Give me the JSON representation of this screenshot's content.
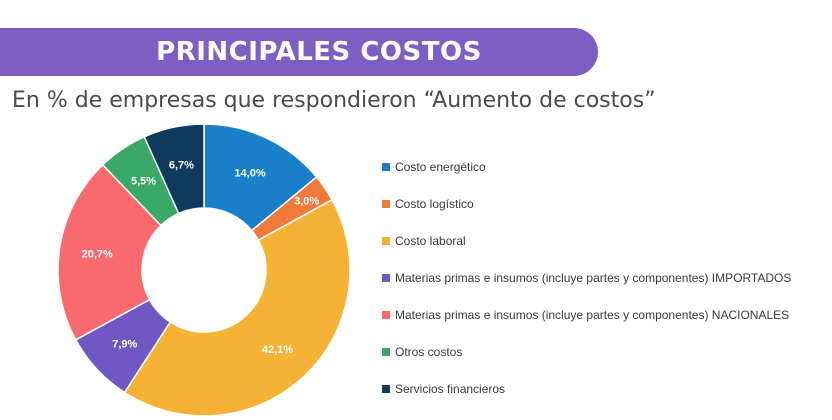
{
  "header": {
    "title": "PRINCIPALES COSTOS"
  },
  "subtitle": "En % de empresas que respondieron “Aumento de costos”",
  "chart_data": {
    "type": "pie",
    "title": "PRINCIPALES COSTOS",
    "subtitle": "En % de empresas que respondieron “Aumento de costos”",
    "legend_position": "right",
    "categories": [
      "Costo energético",
      "Costo logístico",
      "Costo laboral",
      "Materias primas e insumos (incluye partes y componentes) IMPORTADOS",
      "Materias primas e insumos (incluye partes y componentes) NACIONALES",
      "Otros costos",
      "Servicios financieros"
    ],
    "values": [
      14.0,
      3.0,
      42.1,
      7.9,
      20.7,
      5.5,
      6.7
    ],
    "labels": [
      "14,0%",
      "3,0%",
      "42,1%",
      "7,9%",
      "20,7%",
      "5,5%",
      "6,7%"
    ],
    "colors": [
      "#1a7fc9",
      "#f07a3a",
      "#f5b234",
      "#7058c2",
      "#f96a6e",
      "#3aa967",
      "#0e3a5c"
    ]
  }
}
